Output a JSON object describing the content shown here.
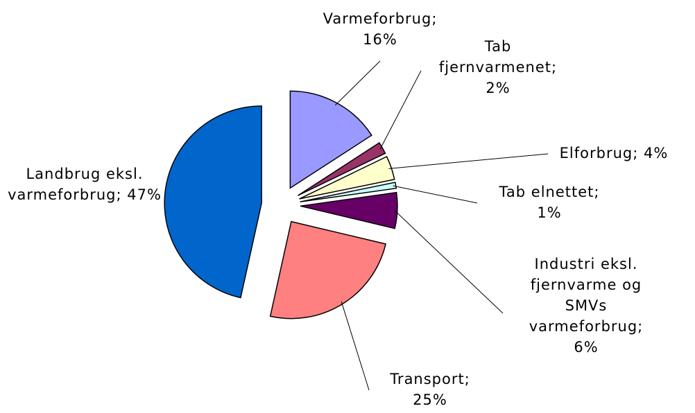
{
  "chart_data": {
    "type": "pie",
    "categories": [
      "Varmeforbrug;",
      "Tab fjernvarmenet;",
      "Elforbrug;",
      "Tab elnettet;",
      "Industri eksl. fjernvarme og SMVs varmeforbrug;",
      "Transport;",
      "Landbrug eksl. varmeforbrug;"
    ],
    "values": [
      16,
      2,
      4,
      1,
      6,
      25,
      47
    ],
    "value_labels": [
      "16%",
      "2%",
      "4%",
      "1%",
      "6%",
      "25%",
      "47%"
    ],
    "colors": [
      "#9999ff",
      "#993366",
      "#ffffcc",
      "#ccffff",
      "#660066",
      "#ff8080",
      "#0066cc"
    ]
  }
}
